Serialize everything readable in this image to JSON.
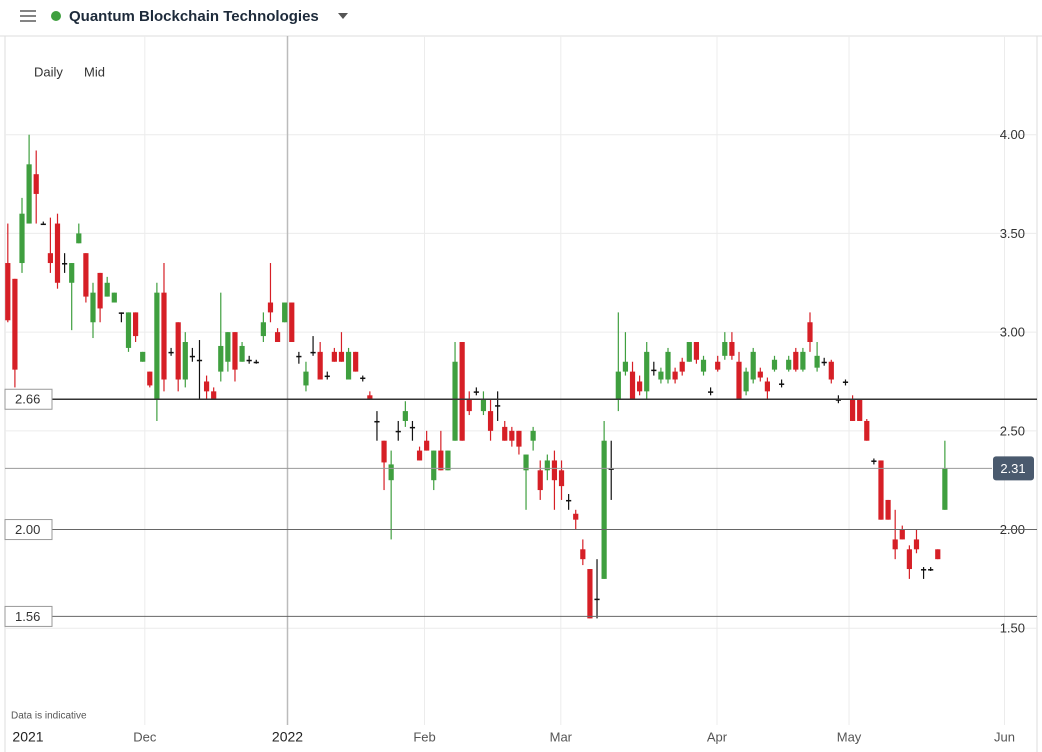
{
  "header": {
    "title": "Quantum Blockchain Technologies"
  },
  "chart_data": {
    "type": "candlestick",
    "interval": "Daily",
    "price_type": "Mid",
    "note": "Data is indicative",
    "up_color": "#3f9f3f",
    "down_color": "#d61f26",
    "x": [
      0,
      1,
      2,
      3,
      4,
      5,
      6,
      7,
      8,
      9,
      10,
      11,
      12,
      13,
      14,
      15,
      16,
      17,
      18,
      19,
      20,
      21,
      22,
      23,
      24,
      25,
      26,
      27,
      28,
      29,
      30,
      31,
      32,
      33,
      34,
      35,
      36,
      37,
      38,
      39,
      40,
      41,
      42,
      43,
      44,
      45,
      46,
      47,
      48,
      49,
      50,
      51,
      52,
      53,
      54,
      55,
      56,
      57,
      58,
      59,
      60,
      61,
      62,
      63,
      64,
      65,
      66,
      67,
      68,
      69,
      70,
      71,
      72,
      73,
      74,
      75,
      76,
      77,
      78,
      79,
      80,
      81,
      82,
      83,
      84,
      85,
      86,
      87,
      88,
      89,
      90,
      91,
      92,
      93,
      94,
      95,
      96,
      97,
      98,
      99,
      100,
      101,
      102,
      103,
      104,
      105,
      106,
      107,
      108,
      109,
      110,
      111,
      112,
      113,
      114,
      115,
      116,
      117,
      118,
      119,
      120,
      121,
      122,
      123,
      124,
      125,
      126,
      127,
      128,
      129,
      130,
      131,
      132
    ],
    "ohlc": [
      [
        3.35,
        3.55,
        3.05,
        3.06
      ],
      [
        3.27,
        3.27,
        2.72,
        2.81
      ],
      [
        3.35,
        3.68,
        3.3,
        3.6
      ],
      [
        3.55,
        4.0,
        3.55,
        3.85
      ],
      [
        3.8,
        3.92,
        3.55,
        3.7
      ],
      [
        3.55,
        3.56,
        3.55,
        3.55
      ],
      [
        3.4,
        3.58,
        3.3,
        3.35
      ],
      [
        3.55,
        3.6,
        3.22,
        3.25
      ],
      [
        3.35,
        3.4,
        3.3,
        3.35
      ],
      [
        3.25,
        3.35,
        3.01,
        3.35
      ],
      [
        3.45,
        3.55,
        3.45,
        3.5
      ],
      [
        3.4,
        3.4,
        3.15,
        3.18
      ],
      [
        3.05,
        3.25,
        2.97,
        3.2
      ],
      [
        3.3,
        3.3,
        3.05,
        3.12
      ],
      [
        3.18,
        3.28,
        3.18,
        3.25
      ],
      [
        3.15,
        3.2,
        3.15,
        3.2
      ],
      [
        3.1,
        3.1,
        3.05,
        3.1
      ],
      [
        2.92,
        3.1,
        2.9,
        3.1
      ],
      [
        3.1,
        3.1,
        2.95,
        2.98
      ],
      [
        2.85,
        2.9,
        2.85,
        2.9
      ],
      [
        2.8,
        2.8,
        2.72,
        2.73
      ],
      [
        2.66,
        3.25,
        2.55,
        3.2
      ],
      [
        3.2,
        3.35,
        2.7,
        2.76
      ],
      [
        2.9,
        2.92,
        2.88,
        2.9
      ],
      [
        3.05,
        3.05,
        2.7,
        2.76
      ],
      [
        2.76,
        3.0,
        2.72,
        2.95
      ],
      [
        2.88,
        2.92,
        2.85,
        2.88
      ],
      [
        2.86,
        2.96,
        2.66,
        2.86
      ],
      [
        2.75,
        2.78,
        2.66,
        2.7
      ],
      [
        2.7,
        2.72,
        2.66,
        2.66
      ],
      [
        2.8,
        3.2,
        2.75,
        2.93
      ],
      [
        2.85,
        3.0,
        2.8,
        3.0
      ],
      [
        3.0,
        3.0,
        2.75,
        2.81
      ],
      [
        2.85,
        2.95,
        2.85,
        2.93
      ],
      [
        2.86,
        2.88,
        2.84,
        2.86
      ],
      [
        2.85,
        2.86,
        2.84,
        2.85
      ],
      [
        2.98,
        3.1,
        2.95,
        3.05
      ],
      [
        3.15,
        3.35,
        3.05,
        3.1
      ],
      [
        3.0,
        3.02,
        2.95,
        2.95
      ],
      [
        3.05,
        3.15,
        3.05,
        3.15
      ],
      [
        3.15,
        3.15,
        2.95,
        2.95
      ],
      [
        2.88,
        2.9,
        2.84,
        2.88
      ],
      [
        2.73,
        2.85,
        2.7,
        2.8
      ],
      [
        2.9,
        2.98,
        2.88,
        2.9
      ],
      [
        2.9,
        2.95,
        2.76,
        2.76
      ],
      [
        2.78,
        2.8,
        2.76,
        2.78
      ],
      [
        2.9,
        2.92,
        2.85,
        2.85
      ],
      [
        2.9,
        3.0,
        2.85,
        2.85
      ],
      [
        2.76,
        2.92,
        2.76,
        2.9
      ],
      [
        2.9,
        2.9,
        2.8,
        2.8
      ],
      [
        2.77,
        2.78,
        2.75,
        2.77
      ],
      [
        2.68,
        2.7,
        2.66,
        2.66
      ],
      [
        2.55,
        2.6,
        2.45,
        2.55
      ],
      [
        2.45,
        2.45,
        2.2,
        2.34
      ],
      [
        2.25,
        2.4,
        1.95,
        2.33
      ],
      [
        2.5,
        2.55,
        2.45,
        2.5
      ],
      [
        2.55,
        2.65,
        2.52,
        2.6
      ],
      [
        2.52,
        2.55,
        2.45,
        2.52
      ],
      [
        2.4,
        2.42,
        2.35,
        2.35
      ],
      [
        2.45,
        2.5,
        2.4,
        2.4
      ],
      [
        2.25,
        2.4,
        2.2,
        2.4
      ],
      [
        2.4,
        2.5,
        2.3,
        2.3
      ],
      [
        2.3,
        2.4,
        2.3,
        2.4
      ],
      [
        2.45,
        2.95,
        2.45,
        2.85
      ],
      [
        2.95,
        2.95,
        2.45,
        2.45
      ],
      [
        2.66,
        2.7,
        2.58,
        2.6
      ],
      [
        2.7,
        2.72,
        2.68,
        2.7
      ],
      [
        2.6,
        2.7,
        2.58,
        2.66
      ],
      [
        2.6,
        2.66,
        2.45,
        2.5
      ],
      [
        2.63,
        2.7,
        2.55,
        2.63
      ],
      [
        2.52,
        2.55,
        2.45,
        2.45
      ],
      [
        2.5,
        2.52,
        2.42,
        2.45
      ],
      [
        2.5,
        2.5,
        2.38,
        2.42
      ],
      [
        2.3,
        2.38,
        2.1,
        2.38
      ],
      [
        2.45,
        2.52,
        2.4,
        2.5
      ],
      [
        2.3,
        2.35,
        2.15,
        2.2
      ],
      [
        2.3,
        2.38,
        2.25,
        2.35
      ],
      [
        2.35,
        2.4,
        2.1,
        2.25
      ],
      [
        2.3,
        2.35,
        2.15,
        2.22
      ],
      [
        2.15,
        2.18,
        2.1,
        2.15
      ],
      [
        2.08,
        2.1,
        2.0,
        2.05
      ],
      [
        1.9,
        1.95,
        1.82,
        1.85
      ],
      [
        1.8,
        1.8,
        1.55,
        1.55
      ],
      [
        1.65,
        1.85,
        1.55,
        1.65
      ],
      [
        1.75,
        2.55,
        1.75,
        2.45
      ],
      [
        2.31,
        2.45,
        2.15,
        2.31
      ],
      [
        2.66,
        3.1,
        2.6,
        2.8
      ],
      [
        2.8,
        3.0,
        2.78,
        2.85
      ],
      [
        2.8,
        2.85,
        2.66,
        2.66
      ],
      [
        2.75,
        2.78,
        2.68,
        2.7
      ],
      [
        2.7,
        2.95,
        2.66,
        2.9
      ],
      [
        2.81,
        2.85,
        2.78,
        2.81
      ],
      [
        2.76,
        2.82,
        2.74,
        2.8
      ],
      [
        2.76,
        2.92,
        2.74,
        2.9
      ],
      [
        2.8,
        2.82,
        2.74,
        2.76
      ],
      [
        2.85,
        2.87,
        2.78,
        2.8
      ],
      [
        2.85,
        2.95,
        2.85,
        2.95
      ],
      [
        2.95,
        2.95,
        2.84,
        2.86
      ],
      [
        2.8,
        2.88,
        2.78,
        2.86
      ],
      [
        2.7,
        2.72,
        2.68,
        2.7
      ],
      [
        2.85,
        2.88,
        2.8,
        2.81
      ],
      [
        2.88,
        3.0,
        2.86,
        2.95
      ],
      [
        2.95,
        3.0,
        2.86,
        2.88
      ],
      [
        2.85,
        2.9,
        2.66,
        2.66
      ],
      [
        2.7,
        2.82,
        2.68,
        2.8
      ],
      [
        2.76,
        2.92,
        2.74,
        2.9
      ],
      [
        2.8,
        2.82,
        2.75,
        2.77
      ],
      [
        2.75,
        2.77,
        2.66,
        2.7
      ],
      [
        2.81,
        2.88,
        2.8,
        2.86
      ],
      [
        2.74,
        2.76,
        2.72,
        2.74
      ],
      [
        2.81,
        2.88,
        2.8,
        2.86
      ],
      [
        2.9,
        2.92,
        2.8,
        2.81
      ],
      [
        2.81,
        2.92,
        2.8,
        2.9
      ],
      [
        3.05,
        3.1,
        2.9,
        2.95
      ],
      [
        2.82,
        2.95,
        2.8,
        2.88
      ],
      [
        2.85,
        2.87,
        2.83,
        2.85
      ],
      [
        2.85,
        2.86,
        2.74,
        2.76
      ],
      [
        2.66,
        2.68,
        2.64,
        2.66
      ],
      [
        2.75,
        2.76,
        2.73,
        2.75
      ],
      [
        2.66,
        2.68,
        2.55,
        2.55
      ],
      [
        2.66,
        2.66,
        2.55,
        2.55
      ],
      [
        2.55,
        2.56,
        2.45,
        2.45
      ],
      [
        2.35,
        2.36,
        2.33,
        2.35
      ],
      [
        2.35,
        2.35,
        2.05,
        2.05
      ],
      [
        2.15,
        2.15,
        2.05,
        2.05
      ],
      [
        1.95,
        2.1,
        1.85,
        1.9
      ],
      [
        2.0,
        2.02,
        1.95,
        1.95
      ],
      [
        1.9,
        1.92,
        1.75,
        1.8
      ],
      [
        1.95,
        2.0,
        1.88,
        1.9
      ],
      [
        1.8,
        1.81,
        1.75,
        1.8
      ],
      [
        1.8,
        1.81,
        1.79,
        1.8
      ],
      [
        1.9,
        1.9,
        1.85,
        1.85
      ],
      [
        2.1,
        2.45,
        2.1,
        2.31
      ]
    ],
    "xlim": [
      -1.1,
      145.4
    ],
    "xticks": [
      {
        "value": 2.8,
        "label": "2021"
      },
      {
        "value": 19.3,
        "label": "Dec"
      },
      {
        "value": 39.4,
        "label": "2022"
      },
      {
        "value": 58.7,
        "label": "Feb"
      },
      {
        "value": 77.9,
        "label": "Mar"
      },
      {
        "value": 99.9,
        "label": "Apr"
      },
      {
        "value": 118.5,
        "label": "May"
      },
      {
        "value": 140.4,
        "label": "Jun"
      }
    ],
    "ylim": [
      1.01,
      4.5
    ],
    "yticks": [
      {
        "value": 1.5,
        "label": "1.50"
      },
      {
        "value": 2,
        "label": "2.00"
      },
      {
        "value": 2.5,
        "label": "2.50"
      },
      {
        "value": 3,
        "label": "3.00"
      },
      {
        "value": 3.5,
        "label": "3.50"
      },
      {
        "value": 4,
        "label": "4.00"
      }
    ],
    "levels": [
      2.66,
      {
        "value": 2,
        "label": "2.00"
      },
      1.56
    ],
    "last_price": 2.31,
    "grid": true
  }
}
